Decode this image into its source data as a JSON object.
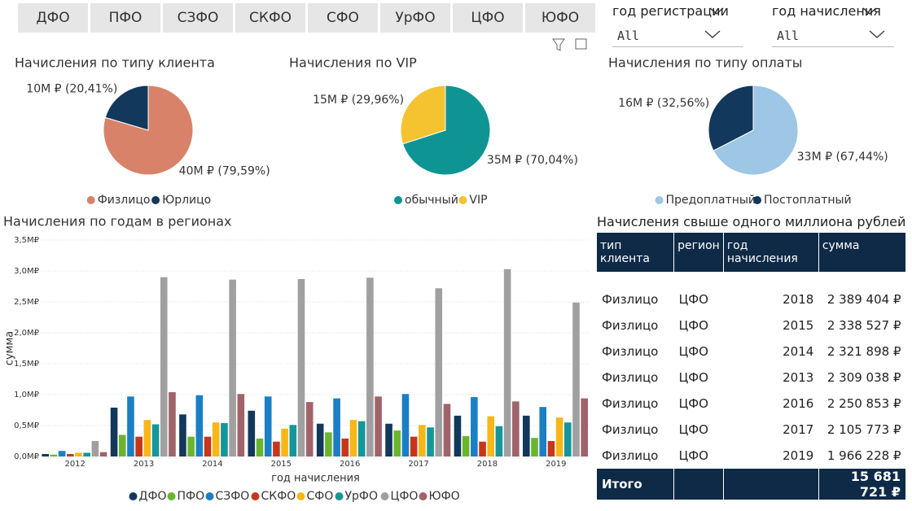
{
  "tabs": [
    "ДФО",
    "ПФО",
    "СЗФО",
    "СКФО",
    "СФО",
    "УрФО",
    "ЦФО",
    "ЮФО"
  ],
  "filters": [
    {
      "label": "год регистрации",
      "value": "All"
    },
    {
      "label": "год начисления",
      "value": "All"
    }
  ],
  "chart_data": [
    {
      "type": "pie",
      "title": "Начисления по типу клиента",
      "categories": [
        "Физлицо",
        "Юрлицо"
      ],
      "values": [
        79.59,
        20.41
      ],
      "value_labels": [
        "40M ₽ (79,59%)",
        "10M ₽ (20,41%)"
      ],
      "colors": [
        "#d9826a",
        "#12385b"
      ]
    },
    {
      "type": "pie",
      "title": "Начисления по VIP",
      "categories": [
        "обычный",
        "VIP"
      ],
      "values": [
        70.04,
        29.96
      ],
      "value_labels": [
        "35M ₽ (70,04%)",
        "15M ₽ (29,96%)"
      ],
      "colors": [
        "#0e9593",
        "#f5c330"
      ]
    },
    {
      "type": "pie",
      "title": "Начисления по типу оплаты",
      "categories": [
        "Предоплатный",
        "Постоплатный"
      ],
      "values": [
        67.44,
        32.56
      ],
      "value_labels": [
        "33M ₽ (67,44%)",
        "16M ₽ (32,56%)"
      ],
      "colors": [
        "#9dc7e4",
        "#12385b"
      ]
    },
    {
      "type": "bar",
      "title": "Начисления по годам в регионах",
      "x_label": "год начисления",
      "y_label": "сумма",
      "categories": [
        "2012",
        "2013",
        "2014",
        "2015",
        "2016",
        "2017",
        "2018",
        "2019"
      ],
      "ylim": [
        0,
        3.5
      ],
      "yticks": [
        {
          "value": 0,
          "label": "0,0M₽"
        },
        {
          "value": 0.5,
          "label": "0,5M₽"
        },
        {
          "value": 1,
          "label": "1,0M₽"
        },
        {
          "value": 1.5,
          "label": "1,5M₽"
        },
        {
          "value": 2,
          "label": "2,0M₽"
        },
        {
          "value": 2.5,
          "label": "2,5M₽"
        },
        {
          "value": 3,
          "label": "3,0M₽"
        },
        {
          "value": 3.5,
          "label": "3,5M₽"
        }
      ],
      "grid": true,
      "series": [
        {
          "name": "ДФО",
          "color": "#12385b",
          "values": [
            0.04,
            0.79,
            0.68,
            0.74,
            0.53,
            0.53,
            0.66,
            0.66
          ]
        },
        {
          "name": "ПФО",
          "color": "#6bb52e",
          "values": [
            0.03,
            0.35,
            0.32,
            0.29,
            0.39,
            0.42,
            0.33,
            0.3
          ]
        },
        {
          "name": "СЗФО",
          "color": "#1a7fc4",
          "values": [
            0.09,
            0.97,
            0.99,
            0.97,
            0.94,
            1.01,
            0.96,
            0.8
          ]
        },
        {
          "name": "СКФО",
          "color": "#c8361a",
          "values": [
            0.04,
            0.32,
            0.32,
            0.24,
            0.29,
            0.32,
            0.24,
            0.25
          ]
        },
        {
          "name": "СФО",
          "color": "#f7b719",
          "values": [
            0.06,
            0.59,
            0.55,
            0.45,
            0.59,
            0.51,
            0.65,
            0.63
          ]
        },
        {
          "name": "УрФО",
          "color": "#14969a",
          "values": [
            0.06,
            0.52,
            0.54,
            0.51,
            0.57,
            0.47,
            0.49,
            0.55
          ]
        },
        {
          "name": "ЦФО",
          "color": "#a0a0a0",
          "values": [
            0.25,
            2.9,
            2.86,
            2.87,
            2.89,
            2.72,
            3.03,
            2.49
          ]
        },
        {
          "name": "ЮФО",
          "color": "#a0636a",
          "values": [
            0.07,
            1.04,
            1.01,
            0.88,
            0.97,
            0.85,
            0.89,
            0.94
          ]
        }
      ]
    }
  ],
  "table": {
    "title": "Начисления свыше одного миллиона рублей",
    "header": [
      "тип клиента",
      "регион",
      "год начисления",
      "сумма"
    ],
    "rows": [
      [
        "Физлицо",
        "ЦФО",
        "2018",
        "2 389 404 ₽"
      ],
      [
        "Физлицо",
        "ЦФО",
        "2015",
        "2 338 527 ₽"
      ],
      [
        "Физлицо",
        "ЦФО",
        "2014",
        "2 321 898 ₽"
      ],
      [
        "Физлицо",
        "ЦФО",
        "2013",
        "2 309 038 ₽"
      ],
      [
        "Физлицо",
        "ЦФО",
        "2016",
        "2 250 853 ₽"
      ],
      [
        "Физлицо",
        "ЦФО",
        "2017",
        "2 105 773 ₽"
      ],
      [
        "Физлицо",
        "ЦФО",
        "2019",
        "1 966 228 ₽"
      ]
    ],
    "total": [
      "Итого",
      "15 681 721 ₽"
    ]
  }
}
